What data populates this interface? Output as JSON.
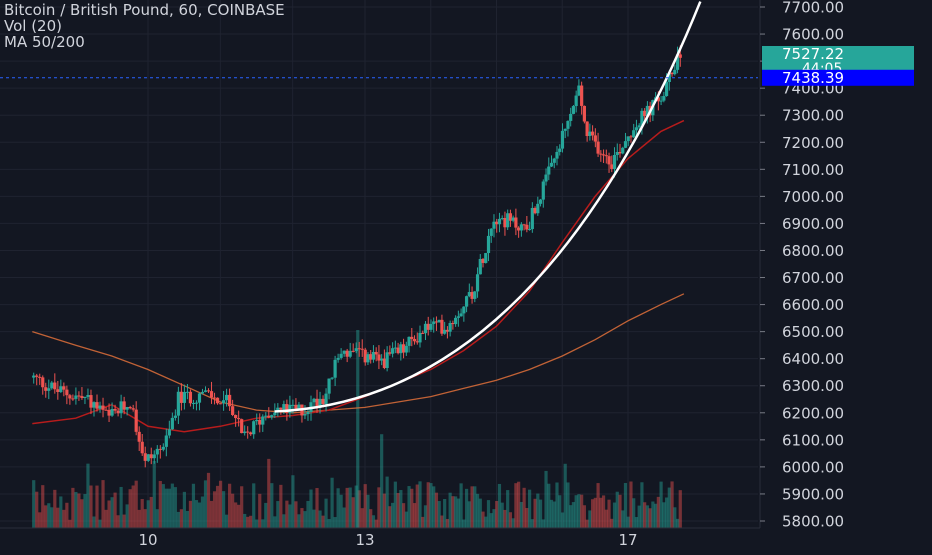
{
  "legend": {
    "title": "Bitcoin / British Pound, 60, COINBASE",
    "volume": "Vol (20)",
    "ma": "MA 50/200"
  },
  "badges": {
    "last_price": "7527.22",
    "countdown": "44:05",
    "crosshair_price": "7438.39"
  },
  "colors": {
    "background": "#131722",
    "up": "#26a69a",
    "down": "#ef5350",
    "ma50": "#b71c1c",
    "ma200": "#e0703a",
    "trendline": "#ffffff",
    "crosshair": "#2962ff",
    "last_price_badge": "#26a69a",
    "crosshair_badge": "#0000ff"
  },
  "chart_data": {
    "type": "candlestick",
    "symbol": "Bitcoin / British Pound",
    "interval": "60",
    "exchange": "COINBASE",
    "ylim": [
      5760,
      7720
    ],
    "yticks": [
      7700,
      7600,
      7500,
      7400,
      7300,
      7200,
      7100,
      7000,
      6900,
      6800,
      6700,
      6600,
      6500,
      6400,
      6300,
      6200,
      6100,
      6000,
      5900,
      5800
    ],
    "ytick_labels": [
      "7700.00",
      "7600.00",
      "7500.00",
      "7400.00",
      "7300.00",
      "7200.00",
      "7100.00",
      "7000.00",
      "6900.00",
      "6800.00",
      "6700.00",
      "6600.00",
      "6500.00",
      "6400.00",
      "6300.00",
      "6200.00",
      "6100.00",
      "6000.00",
      "5900.00",
      "5800.00"
    ],
    "xticks": [
      "10",
      "13",
      "17"
    ],
    "x_day_range": [
      8.4,
      18.0
    ],
    "price_path_anchors": [
      [
        8.45,
        6330
      ],
      [
        8.8,
        6280
      ],
      [
        9.2,
        6250
      ],
      [
        9.5,
        6180
      ],
      [
        9.8,
        6240
      ],
      [
        10.0,
        6020
      ],
      [
        10.3,
        6090
      ],
      [
        10.45,
        6250
      ],
      [
        10.8,
        6270
      ],
      [
        11.2,
        6230
      ],
      [
        11.35,
        6100
      ],
      [
        11.7,
        6210
      ],
      [
        12.2,
        6210
      ],
      [
        12.5,
        6270
      ],
      [
        12.7,
        6430
      ],
      [
        13.3,
        6390
      ],
      [
        13.6,
        6430
      ],
      [
        14.0,
        6520
      ],
      [
        14.3,
        6520
      ],
      [
        14.7,
        6660
      ],
      [
        15.0,
        6930
      ],
      [
        15.5,
        6880
      ],
      [
        15.9,
        7120
      ],
      [
        16.1,
        7250
      ],
      [
        16.3,
        7400
      ],
      [
        16.4,
        7230
      ],
      [
        16.8,
        7130
      ],
      [
        17.1,
        7250
      ],
      [
        17.6,
        7380
      ],
      [
        17.8,
        7527
      ]
    ],
    "ma50_points": [
      [
        8.4,
        6160
      ],
      [
        9.0,
        6180
      ],
      [
        9.5,
        6230
      ],
      [
        10.0,
        6150
      ],
      [
        10.5,
        6130
      ],
      [
        11.0,
        6150
      ],
      [
        11.5,
        6180
      ],
      [
        12.0,
        6190
      ],
      [
        12.5,
        6210
      ],
      [
        13.0,
        6260
      ],
      [
        13.5,
        6310
      ],
      [
        14.0,
        6360
      ],
      [
        14.5,
        6430
      ],
      [
        15.0,
        6520
      ],
      [
        15.5,
        6650
      ],
      [
        16.0,
        6830
      ],
      [
        16.5,
        7000
      ],
      [
        17.0,
        7140
      ],
      [
        17.5,
        7240
      ],
      [
        17.85,
        7280
      ]
    ],
    "ma200_points": [
      [
        8.4,
        6500
      ],
      [
        9.0,
        6450
      ],
      [
        9.5,
        6410
      ],
      [
        10.0,
        6360
      ],
      [
        10.5,
        6300
      ],
      [
        11.0,
        6240
      ],
      [
        11.5,
        6210
      ],
      [
        12.0,
        6200
      ],
      [
        12.5,
        6210
      ],
      [
        13.0,
        6220
      ],
      [
        13.5,
        6240
      ],
      [
        14.0,
        6260
      ],
      [
        14.5,
        6290
      ],
      [
        15.0,
        6320
      ],
      [
        15.5,
        6360
      ],
      [
        16.0,
        6410
      ],
      [
        16.5,
        6470
      ],
      [
        17.0,
        6540
      ],
      [
        17.5,
        6600
      ],
      [
        17.85,
        6640
      ]
    ],
    "trendline": {
      "start": [
        11.75,
        6205
      ],
      "end": [
        18.1,
        7720
      ],
      "style": "curved"
    },
    "last_price": 7527.22,
    "crosshair_price": 7438.39,
    "volume_max_relative": 1.0
  }
}
